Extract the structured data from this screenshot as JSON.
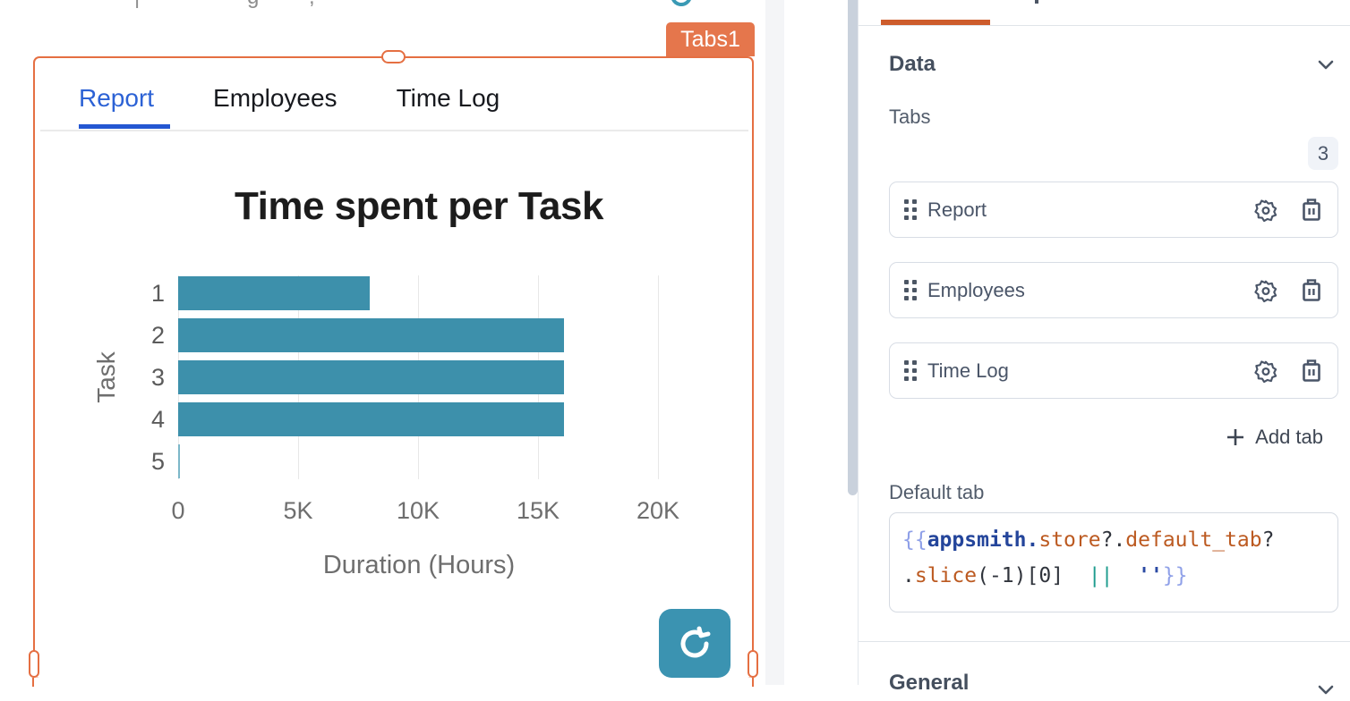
{
  "canvas": {
    "widget_badge": "Tabs1",
    "clipped_top_fragments": [
      "|",
      "g",
      ","
    ],
    "tab_bar": {
      "tabs": [
        {
          "label": "Report",
          "active": true
        },
        {
          "label": "Employees",
          "active": false
        },
        {
          "label": "Time Log",
          "active": false
        }
      ]
    }
  },
  "chart_data": {
    "type": "bar",
    "orientation": "horizontal",
    "title": "Time spent per Task",
    "categories": [
      "1",
      "2",
      "3",
      "4",
      "5"
    ],
    "values": [
      8000,
      16100,
      16100,
      16100,
      75
    ],
    "xlabel": "Duration (Hours)",
    "ylabel": "Task",
    "xlim": [
      0,
      20000
    ],
    "xtick_labels": [
      "0",
      "5K",
      "10K",
      "15K",
      "20K"
    ],
    "xtick_values": [
      0,
      5000,
      10000,
      15000,
      20000
    ],
    "bar_color": "#3d90ab",
    "grid": true,
    "legend": false
  },
  "property_pane": {
    "data_section": {
      "title": "Data",
      "list_label": "Tabs",
      "count_badge": "3",
      "items": [
        {
          "label": "Report"
        },
        {
          "label": "Employees"
        },
        {
          "label": "Time Log"
        }
      ],
      "add_button_label": "Add tab",
      "default_tab_label": "Default tab",
      "code": {
        "full_text": "{{appsmith.store?.default_tab?.slice(-1)[0]  ||  ''}}",
        "lines": [
          [
            {
              "t": "{{"
            },
            {
              "t": "appsmith"
            },
            {
              "t": "."
            },
            {
              "t": "store"
            },
            {
              "t": "?."
            },
            {
              "t": "default_tab"
            },
            {
              "t": "?"
            }
          ],
          [
            {
              "t": "."
            },
            {
              "t": "slice"
            },
            {
              "t": "(-1)[0]"
            },
            {
              "t": "  "
            },
            {
              "t": "||"
            },
            {
              "t": "  "
            },
            {
              "t": "''"
            },
            {
              "t": "}}"
            }
          ]
        ]
      }
    },
    "general_section": {
      "title": "General"
    }
  },
  "colors": {
    "selection_orange": "#e56f42",
    "pane_accent_orange": "#cd5c2c",
    "active_tab_blue": "#2c62d5",
    "bar_teal": "#3d90ab",
    "button_teal": "#3b93b1"
  }
}
